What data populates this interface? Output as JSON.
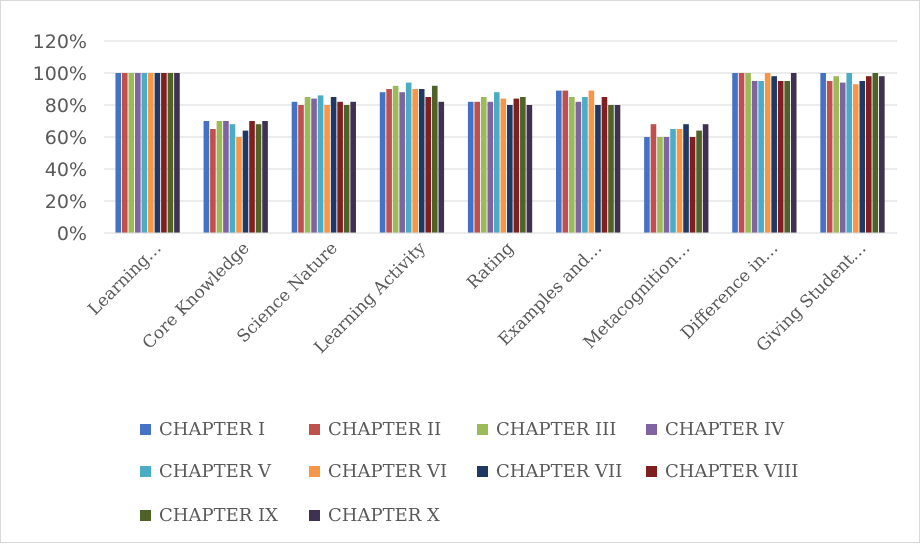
{
  "chart_data": {
    "type": "bar",
    "title": "",
    "xlabel": "",
    "ylabel": "",
    "ylim": [
      0,
      120
    ],
    "y_ticks": [
      "0%",
      "20%",
      "40%",
      "60%",
      "80%",
      "100%",
      "120%"
    ],
    "grid": true,
    "legend_placement": "bottom",
    "categories": [
      "Learning…",
      "Core Knowledge",
      "Science Nature",
      "Learning Activity",
      "Rating",
      "Examples and…",
      "Metacognition…",
      "Difference in…",
      "Giving Student…"
    ],
    "series": [
      {
        "name": "CHAPTER I",
        "color": "#4472c4",
        "values": [
          100,
          70,
          82,
          88,
          82,
          89,
          60,
          100,
          100
        ]
      },
      {
        "name": "CHAPTER II",
        "color": "#c0504d",
        "values": [
          100,
          65,
          80,
          90,
          82,
          89,
          68,
          100,
          95
        ]
      },
      {
        "name": "CHAPTER III",
        "color": "#9bbb59",
        "values": [
          100,
          70,
          85,
          92,
          85,
          85,
          60,
          100,
          98
        ]
      },
      {
        "name": "CHAPTER IV",
        "color": "#8064a2",
        "values": [
          100,
          70,
          84,
          88,
          82,
          82,
          60,
          95,
          94
        ]
      },
      {
        "name": "CHAPTER V",
        "color": "#4bacc6",
        "values": [
          100,
          68,
          86,
          94,
          88,
          85,
          65,
          95,
          100
        ]
      },
      {
        "name": "CHAPTER VI",
        "color": "#f79646",
        "values": [
          100,
          60,
          80,
          90,
          84,
          89,
          65,
          100,
          93
        ]
      },
      {
        "name": "CHAPTER VII",
        "color": "#1f3864",
        "values": [
          100,
          64,
          85,
          90,
          80,
          80,
          68,
          98,
          95
        ]
      },
      {
        "name": "CHAPTER VIII",
        "color": "#7f1f1f",
        "values": [
          100,
          70,
          82,
          85,
          84,
          85,
          60,
          95,
          98
        ]
      },
      {
        "name": "CHAPTER IX",
        "color": "#4f6228",
        "values": [
          100,
          68,
          80,
          92,
          85,
          80,
          64,
          95,
          100
        ]
      },
      {
        "name": "CHAPTER X",
        "color": "#3f3151",
        "values": [
          100,
          70,
          82,
          82,
          80,
          80,
          68,
          100,
          98
        ]
      }
    ]
  }
}
